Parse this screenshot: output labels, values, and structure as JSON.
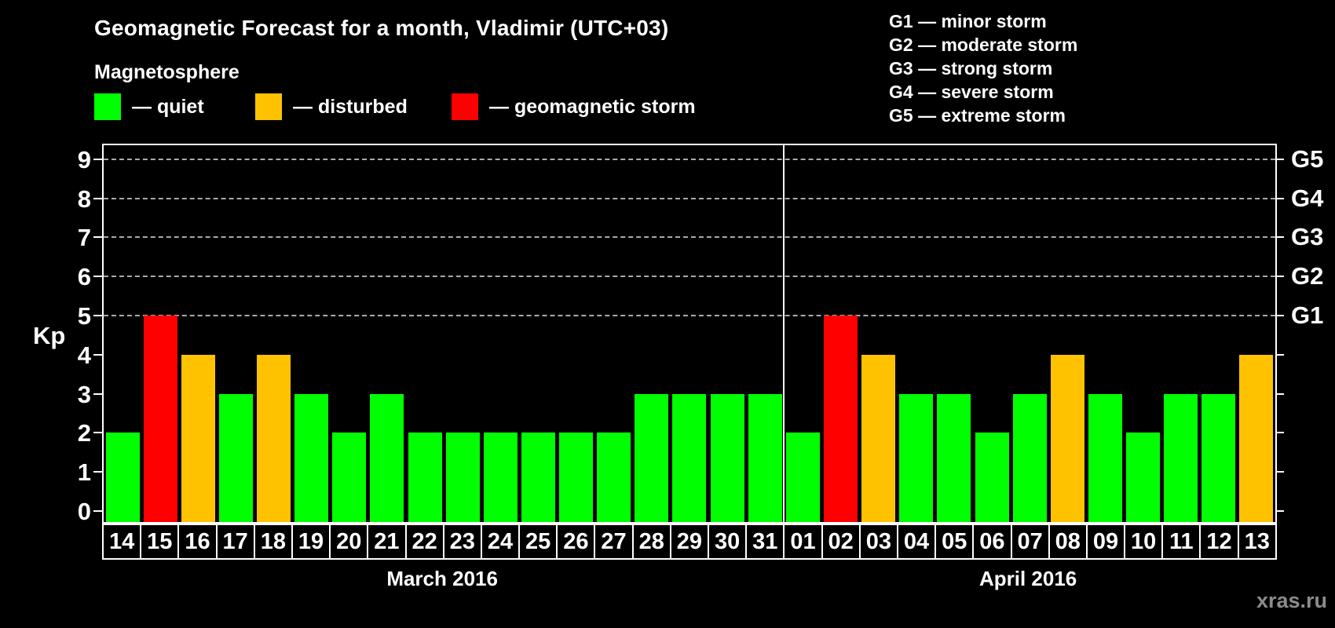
{
  "title": "Geomagnetic Forecast for a month, Vladimir (UTC+03)",
  "subtitle": "Magnetosphere",
  "legend": {
    "items": [
      {
        "name": "quiet",
        "label": "— quiet",
        "color": "#00FF00"
      },
      {
        "name": "disturbed",
        "label": "— disturbed",
        "color": "#FFC200"
      },
      {
        "name": "storm",
        "label": "— geomagnetic storm",
        "color": "#FF0000"
      }
    ]
  },
  "g_scale_legend": [
    "G1 — minor storm",
    "G2 — moderate storm",
    "G3 — strong storm",
    "G4 — severe storm",
    "G5 — extreme storm"
  ],
  "watermark": "xras.ru",
  "chart_data": {
    "type": "bar",
    "ylabel": "Kp",
    "yticks": [
      0,
      1,
      2,
      3,
      4,
      5,
      6,
      7,
      8,
      9
    ],
    "ylim": [
      0,
      9
    ],
    "gridlines_at_kp": [
      5,
      6,
      7,
      8,
      9
    ],
    "grid_style": "dashed",
    "legend_position": "top",
    "right_axis_labels": [
      {
        "kp": 5,
        "label": "G1"
      },
      {
        "kp": 6,
        "label": "G2"
      },
      {
        "kp": 7,
        "label": "G3"
      },
      {
        "kp": 8,
        "label": "G4"
      },
      {
        "kp": 9,
        "label": "G5"
      }
    ],
    "status_colors": {
      "quiet": "#00FF00",
      "disturbed": "#FFC200",
      "storm": "#FF0000"
    },
    "months": [
      {
        "label": "March 2016",
        "days": [
          {
            "day": "14",
            "kp": 2,
            "status": "quiet"
          },
          {
            "day": "15",
            "kp": 5,
            "status": "storm"
          },
          {
            "day": "16",
            "kp": 4,
            "status": "disturbed"
          },
          {
            "day": "17",
            "kp": 3,
            "status": "quiet"
          },
          {
            "day": "18",
            "kp": 4,
            "status": "disturbed"
          },
          {
            "day": "19",
            "kp": 3,
            "status": "quiet"
          },
          {
            "day": "20",
            "kp": 2,
            "status": "quiet"
          },
          {
            "day": "21",
            "kp": 3,
            "status": "quiet"
          },
          {
            "day": "22",
            "kp": 2,
            "status": "quiet"
          },
          {
            "day": "23",
            "kp": 2,
            "status": "quiet"
          },
          {
            "day": "24",
            "kp": 2,
            "status": "quiet"
          },
          {
            "day": "25",
            "kp": 2,
            "status": "quiet"
          },
          {
            "day": "26",
            "kp": 2,
            "status": "quiet"
          },
          {
            "day": "27",
            "kp": 2,
            "status": "quiet"
          },
          {
            "day": "28",
            "kp": 3,
            "status": "quiet"
          },
          {
            "day": "29",
            "kp": 3,
            "status": "quiet"
          },
          {
            "day": "30",
            "kp": 3,
            "status": "quiet"
          },
          {
            "day": "31",
            "kp": 3,
            "status": "quiet"
          }
        ]
      },
      {
        "label": "April 2016",
        "days": [
          {
            "day": "01",
            "kp": 2,
            "status": "quiet"
          },
          {
            "day": "02",
            "kp": 5,
            "status": "storm"
          },
          {
            "day": "03",
            "kp": 4,
            "status": "disturbed"
          },
          {
            "day": "04",
            "kp": 3,
            "status": "quiet"
          },
          {
            "day": "05",
            "kp": 3,
            "status": "quiet"
          },
          {
            "day": "06",
            "kp": 2,
            "status": "quiet"
          },
          {
            "day": "07",
            "kp": 3,
            "status": "quiet"
          },
          {
            "day": "08",
            "kp": 4,
            "status": "disturbed"
          },
          {
            "day": "09",
            "kp": 3,
            "status": "quiet"
          },
          {
            "day": "10",
            "kp": 2,
            "status": "quiet"
          },
          {
            "day": "11",
            "kp": 3,
            "status": "quiet"
          },
          {
            "day": "12",
            "kp": 3,
            "status": "quiet"
          },
          {
            "day": "13",
            "kp": 4,
            "status": "disturbed"
          }
        ]
      }
    ]
  }
}
